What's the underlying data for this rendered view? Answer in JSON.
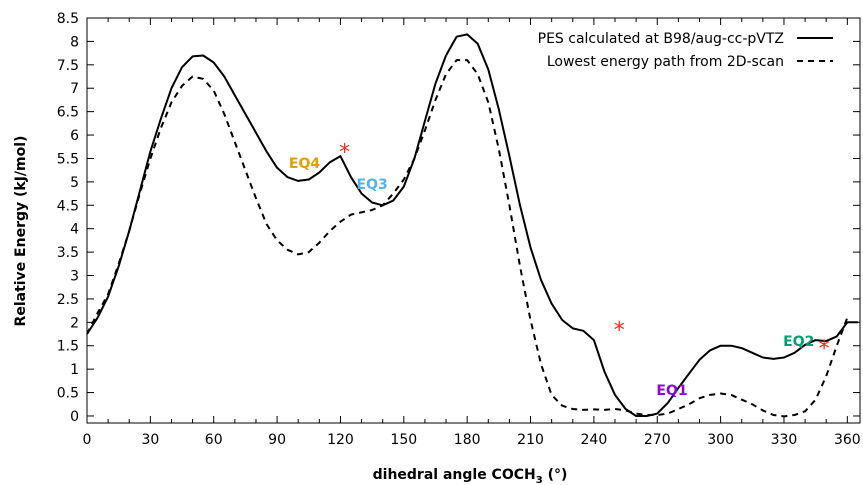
{
  "chart_data": {
    "type": "line",
    "xlabel": "dihedral angle COCH",
    "xlabel_sub": "3",
    "xlabel_unit": " (°)",
    "ylabel": "Relative Energy (kJ/mol)",
    "xlim": [
      0,
      366
    ],
    "ylim": [
      -0.15,
      8.5
    ],
    "xticks": [
      0,
      30,
      60,
      90,
      120,
      150,
      180,
      210,
      240,
      270,
      300,
      330,
      360
    ],
    "yticks": [
      0,
      0.5,
      1,
      1.5,
      2,
      2.5,
      3,
      3.5,
      4,
      4.5,
      5,
      5.5,
      6,
      6.5,
      7,
      7.5,
      8,
      8.5
    ],
    "grid": false,
    "legend_position": "top-right",
    "series": [
      {
        "name": "PES calculated at B98/aug-cc-pVTZ",
        "style": "solid",
        "color": "#000000",
        "x": [
          0,
          5,
          10,
          15,
          20,
          25,
          30,
          35,
          40,
          45,
          50,
          55,
          60,
          65,
          70,
          75,
          80,
          85,
          90,
          95,
          100,
          105,
          110,
          115,
          120,
          125,
          130,
          135,
          140,
          145,
          150,
          155,
          160,
          165,
          170,
          175,
          180,
          185,
          190,
          195,
          200,
          205,
          210,
          215,
          220,
          225,
          230,
          235,
          240,
          245,
          250,
          255,
          260,
          265,
          270,
          275,
          280,
          285,
          290,
          295,
          300,
          305,
          310,
          315,
          320,
          325,
          330,
          335,
          340,
          345,
          350,
          355,
          360,
          365
        ],
        "y": [
          1.75,
          2.1,
          2.55,
          3.2,
          3.95,
          4.8,
          5.65,
          6.35,
          7.0,
          7.45,
          7.68,
          7.7,
          7.55,
          7.25,
          6.85,
          6.45,
          6.05,
          5.65,
          5.3,
          5.1,
          5.02,
          5.05,
          5.2,
          5.42,
          5.55,
          5.1,
          4.75,
          4.56,
          4.5,
          4.6,
          4.9,
          5.5,
          6.3,
          7.1,
          7.7,
          8.1,
          8.15,
          7.95,
          7.4,
          6.55,
          5.55,
          4.5,
          3.6,
          2.9,
          2.4,
          2.05,
          1.87,
          1.82,
          1.62,
          0.95,
          0.45,
          0.15,
          0.0,
          0.0,
          0.05,
          0.28,
          0.6,
          0.9,
          1.2,
          1.4,
          1.5,
          1.5,
          1.45,
          1.35,
          1.25,
          1.22,
          1.25,
          1.35,
          1.52,
          1.62,
          1.6,
          1.7,
          2.0,
          2.0
        ]
      },
      {
        "name": "Lowest energy path from 2D-scan",
        "style": "dashed",
        "color": "#000000",
        "x": [
          0,
          5,
          10,
          15,
          20,
          25,
          30,
          35,
          40,
          45,
          50,
          55,
          60,
          65,
          70,
          75,
          80,
          85,
          90,
          95,
          100,
          105,
          110,
          115,
          120,
          125,
          130,
          135,
          140,
          145,
          150,
          155,
          160,
          165,
          170,
          175,
          180,
          185,
          190,
          195,
          200,
          205,
          210,
          215,
          220,
          225,
          230,
          235,
          240,
          245,
          250,
          255,
          260,
          265,
          270,
          275,
          280,
          285,
          290,
          295,
          300,
          305,
          310,
          315,
          320,
          325,
          330,
          335,
          340,
          345,
          350,
          355,
          360
        ],
        "y": [
          1.75,
          2.2,
          2.6,
          3.25,
          3.95,
          4.75,
          5.5,
          6.15,
          6.7,
          7.05,
          7.25,
          7.2,
          6.95,
          6.45,
          5.85,
          5.25,
          4.65,
          4.1,
          3.75,
          3.55,
          3.45,
          3.5,
          3.7,
          3.95,
          4.15,
          4.3,
          4.35,
          4.4,
          4.5,
          4.75,
          5.05,
          5.5,
          6.1,
          6.75,
          7.3,
          7.6,
          7.6,
          7.3,
          6.7,
          5.7,
          4.5,
          3.2,
          2.05,
          1.1,
          0.45,
          0.22,
          0.15,
          0.13,
          0.14,
          0.13,
          0.15,
          0.12,
          0.05,
          0.02,
          0.02,
          0.05,
          0.15,
          0.25,
          0.38,
          0.45,
          0.48,
          0.45,
          0.35,
          0.25,
          0.12,
          0.02,
          -0.01,
          0.02,
          0.1,
          0.35,
          0.85,
          1.5,
          2.1
        ]
      }
    ],
    "annotations": [
      {
        "text": "EQ4",
        "x": 103,
        "y": 5.4,
        "color": "#e69f00",
        "kind": "label"
      },
      {
        "text": "EQ3",
        "x": 135,
        "y": 4.95,
        "color": "#56b4e9",
        "kind": "label"
      },
      {
        "text": "EQ1",
        "x": 277,
        "y": 0.55,
        "color": "#9400d3",
        "kind": "label"
      },
      {
        "text": "EQ2",
        "x": 337,
        "y": 1.6,
        "color": "#009e73",
        "kind": "label"
      },
      {
        "text": "*",
        "x": 122,
        "y": 5.8,
        "color": "#ff2a1a",
        "kind": "star"
      },
      {
        "text": "*",
        "x": 252,
        "y": 2.0,
        "color": "#ff2a1a",
        "kind": "star"
      },
      {
        "text": "*",
        "x": 349,
        "y": 1.6,
        "color": "#ff2a1a",
        "kind": "star"
      }
    ]
  }
}
